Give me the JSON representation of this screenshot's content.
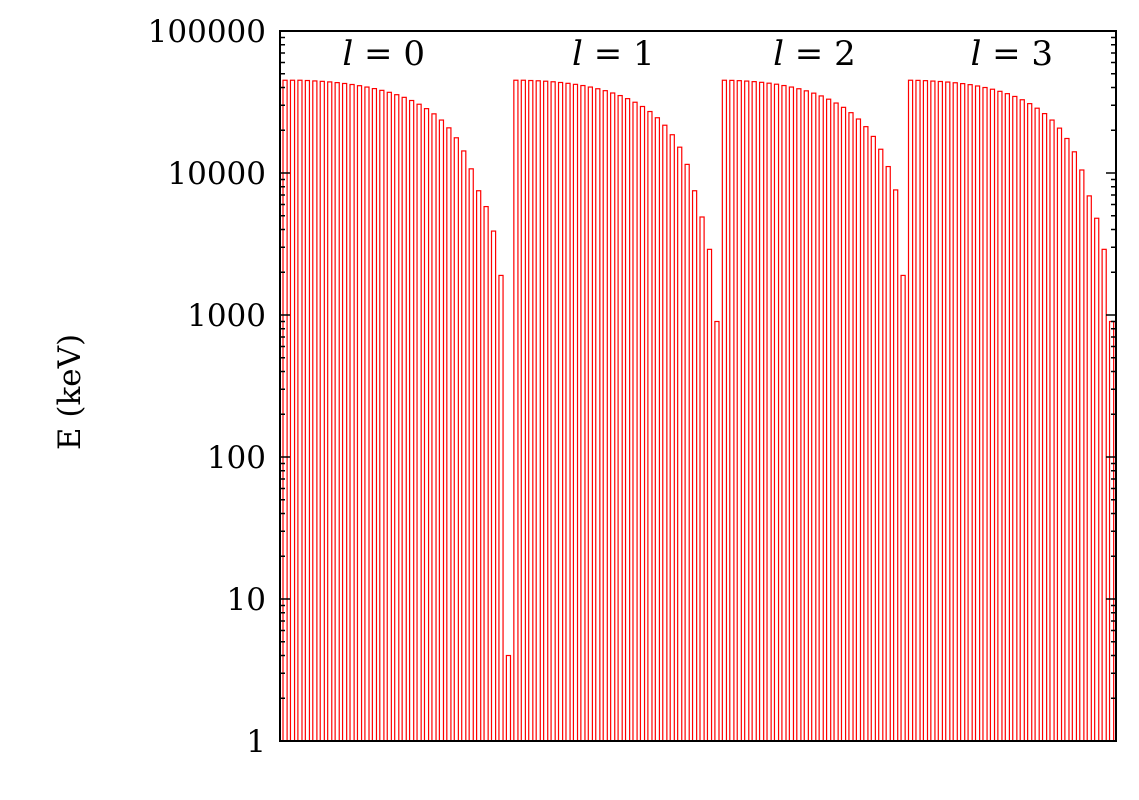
{
  "chart_data": {
    "type": "bar",
    "ylabel": "E (keV)",
    "yscale": "log",
    "ylim": [
      1,
      100000
    ],
    "yticks": [
      "1",
      "10",
      "100",
      "1000",
      "10000",
      "100000"
    ],
    "grid": false,
    "bar_color": "#ff0000",
    "group_labels": [
      {
        "var": "l",
        "eq": "= 0"
      },
      {
        "var": "l",
        "eq": "= 1"
      },
      {
        "var": "l",
        "eq": "= 2"
      },
      {
        "var": "l",
        "eq": "= 3"
      }
    ],
    "series": [
      {
        "group": "l = 0",
        "values": [
          45000,
          45000,
          45000,
          44800,
          44500,
          44200,
          43800,
          43300,
          42700,
          42000,
          41200,
          40300,
          39300,
          38200,
          37000,
          35600,
          34100,
          32400,
          30500,
          28400,
          26100,
          23600,
          20800,
          17700,
          14300,
          10700,
          7500,
          5800,
          3900,
          1900
        ]
      },
      {
        "group": "l = 1",
        "values": [
          4,
          45000,
          45000,
          44800,
          44600,
          44300,
          43900,
          43400,
          42800,
          42100,
          41300,
          40300,
          39200,
          38000,
          36600,
          35100,
          33400,
          31500,
          29400,
          27100,
          24500,
          21700,
          18600,
          15200,
          11500,
          7500,
          4900,
          2900,
          900
        ]
      },
      {
        "group": "l = 2",
        "values": [
          45000,
          44900,
          44700,
          44400,
          44000,
          43500,
          42900,
          42200,
          41300,
          40300,
          39200,
          37900,
          36500,
          34900,
          33100,
          31100,
          29000,
          26600,
          24000,
          21200,
          18100,
          14700,
          11100,
          7600,
          1900
        ]
      },
      {
        "group": "l = 3",
        "values": [
          45000,
          44900,
          44700,
          44400,
          44100,
          43700,
          43200,
          42600,
          41900,
          41000,
          40000,
          38900,
          37600,
          36200,
          34600,
          32800,
          30800,
          28600,
          26200,
          23600,
          20700,
          17500,
          14100,
          10500,
          6900,
          4800,
          2900,
          900
        ]
      }
    ]
  }
}
